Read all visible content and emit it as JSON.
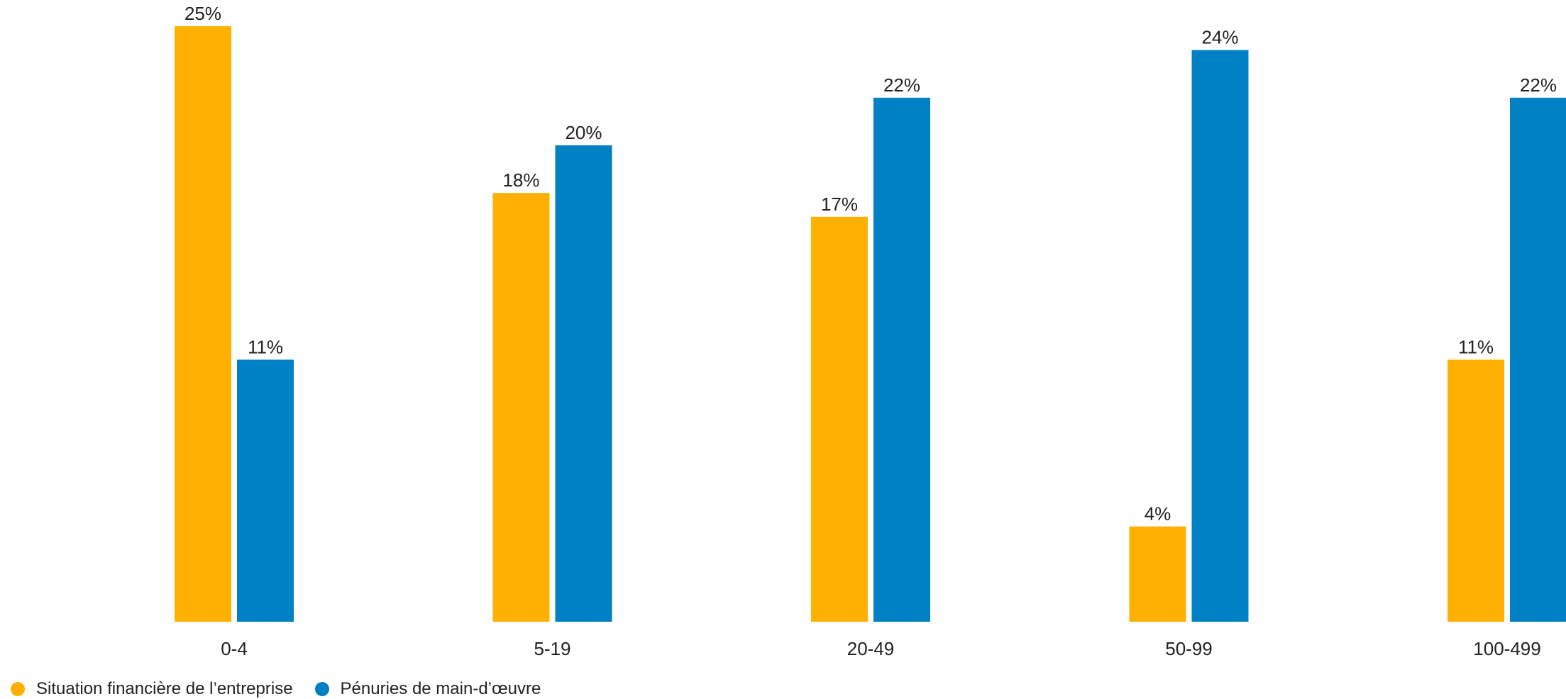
{
  "chart_data": {
    "type": "bar",
    "title": "",
    "xlabel": "",
    "ylabel": "",
    "categories": [
      "0-4",
      "5-19",
      "20-49",
      "50-99",
      "100-499"
    ],
    "series": [
      {
        "name": "Situation financière de l’entreprise",
        "color": "#FFB000",
        "values": [
          25,
          18,
          17,
          4,
          11
        ],
        "labels": [
          "25%",
          "18%",
          "17%",
          "4%",
          "11%"
        ]
      },
      {
        "name": "Pénuries de main-d’œuvre",
        "color": "#0080C5",
        "values": [
          11,
          20,
          22,
          24,
          22
        ],
        "labels": [
          "11%",
          "20%",
          "22%",
          "24%",
          "22%"
        ]
      }
    ],
    "ylim": [
      0,
      25
    ],
    "grid": false,
    "legend_position": "bottom-left"
  }
}
